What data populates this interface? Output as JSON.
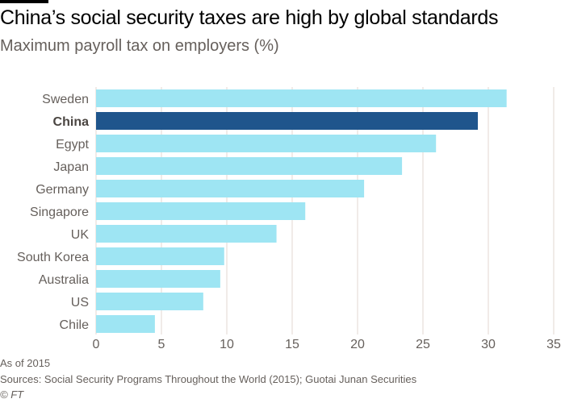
{
  "title": "China’s social security taxes are high by global standards",
  "subtitle": "Maximum payroll tax on employers (%)",
  "footnote": "As of 2015",
  "sources": "Sources: Social Security Programs Throughout the World (2015); Guotai Junan Securities",
  "copyright": "© FT",
  "colors": {
    "bar": "#9ee5f3",
    "highlight": "#1f558c",
    "grid": "#e9e0dc"
  },
  "chart_data": {
    "type": "bar",
    "orientation": "horizontal",
    "title": "China’s social security taxes are high by global standards",
    "subtitle": "Maximum payroll tax on employers (%)",
    "categories": [
      "Sweden",
      "China",
      "Egypt",
      "Japan",
      "Germany",
      "Singapore",
      "UK",
      "South Korea",
      "Australia",
      "US",
      "Chile"
    ],
    "values": [
      31.4,
      29.2,
      26.0,
      23.4,
      20.5,
      16.0,
      13.8,
      9.8,
      9.5,
      8.2,
      4.5
    ],
    "highlight": "China",
    "xlabel": "",
    "ylabel": "",
    "xlim": [
      0,
      35
    ],
    "xticks": [
      0,
      5,
      10,
      15,
      20,
      25,
      30,
      35
    ],
    "grid": true
  }
}
